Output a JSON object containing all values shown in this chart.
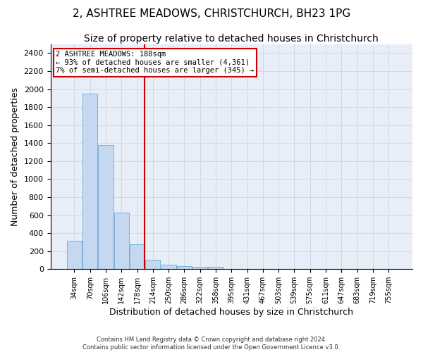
{
  "title": "2, ASHTREE MEADOWS, CHRISTCHURCH, BH23 1PG",
  "subtitle": "Size of property relative to detached houses in Christchurch",
  "xlabel": "Distribution of detached houses by size in Christchurch",
  "ylabel": "Number of detached properties",
  "footer_line1": "Contains HM Land Registry data © Crown copyright and database right 2024.",
  "footer_line2": "Contains public sector information licensed under the Open Government Licence v3.0.",
  "bar_labels": [
    "34sqm",
    "70sqm",
    "106sqm",
    "142sqm",
    "178sqm",
    "214sqm",
    "250sqm",
    "286sqm",
    "322sqm",
    "358sqm",
    "395sqm",
    "431sqm",
    "467sqm",
    "503sqm",
    "539sqm",
    "575sqm",
    "611sqm",
    "647sqm",
    "683sqm",
    "719sqm",
    "755sqm"
  ],
  "bar_values": [
    315,
    1950,
    1380,
    630,
    275,
    100,
    50,
    35,
    27,
    22,
    0,
    0,
    0,
    0,
    0,
    0,
    0,
    0,
    0,
    0,
    0
  ],
  "bar_color": "#c5d8f0",
  "bar_edge_color": "#6aaad4",
  "grid_color": "#d0d8e8",
  "background_color": "#e8eef8",
  "annotation_line1": "2 ASHTREE MEADOWS: 188sqm",
  "annotation_line2": "← 93% of detached houses are smaller (4,361)",
  "annotation_line3": "7% of semi-detached houses are larger (345) →",
  "annotation_box_color": "#ffffff",
  "annotation_box_edge_color": "#cc0000",
  "vline_x": 4.47,
  "vline_color": "#cc0000",
  "ylim": [
    0,
    2500
  ],
  "yticks": [
    0,
    200,
    400,
    600,
    800,
    1000,
    1200,
    1400,
    1600,
    1800,
    2000,
    2200,
    2400
  ],
  "title_fontsize": 11,
  "subtitle_fontsize": 10,
  "xlabel_fontsize": 9,
  "ylabel_fontsize": 9,
  "tick_fontsize": 8,
  "xtick_fontsize": 7
}
